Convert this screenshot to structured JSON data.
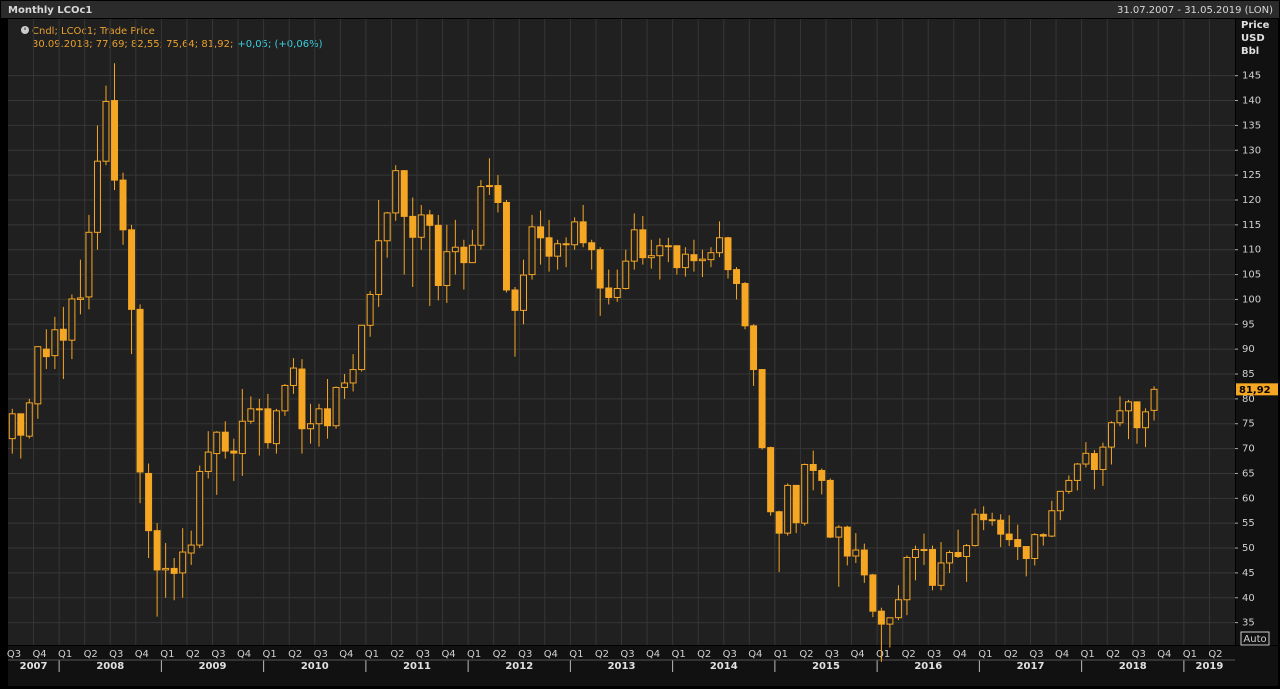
{
  "chart_data": {
    "type": "candlestick",
    "title": "Monthly LCOc1",
    "date_range": "31.07.2007 - 31.05.2019 (LON)",
    "axis_label": [
      "Price",
      "USD",
      "Bbl"
    ],
    "legend": "Cndl; LCOc1; Trade Price",
    "info": "30.09.2018; 77,69; 82,55; 75,64; 81,92;",
    "change": "+0,05; (+0,06%)",
    "button": "Auto",
    "color": "#f5a623",
    "ylim": [
      30.5,
      156.4
    ],
    "yticks": [
      35,
      40,
      45,
      50,
      55,
      60,
      65,
      70,
      75,
      80,
      85,
      90,
      95,
      100,
      105,
      110,
      115,
      120,
      125,
      130,
      135,
      140,
      145
    ],
    "grid": true,
    "last_price": {
      "value": 81.92,
      "label": "81,92"
    },
    "quarter_labels": [
      "Q3",
      "Q4",
      "Q1",
      "Q2",
      "Q3",
      "Q4",
      "Q1",
      "Q2",
      "Q3",
      "Q4",
      "Q1",
      "Q2",
      "Q3",
      "Q4",
      "Q1",
      "Q2",
      "Q3",
      "Q4",
      "Q1",
      "Q2",
      "Q3",
      "Q4",
      "Q1",
      "Q2",
      "Q3",
      "Q4",
      "Q1",
      "Q2",
      "Q3",
      "Q4",
      "Q1",
      "Q2",
      "Q3",
      "Q4",
      "Q1",
      "Q2",
      "Q3",
      "Q4",
      "Q1",
      "Q2",
      "Q3",
      "Q4",
      "Q1",
      "Q2",
      "Q3",
      "Q4",
      "Q1",
      "Q2"
    ],
    "year_labels": [
      "2007",
      "2008",
      "2009",
      "2010",
      "2011",
      "2012",
      "2013",
      "2014",
      "2015",
      "2016",
      "2017",
      "2018",
      "2019"
    ],
    "open": [
      72,
      77,
      72.5,
      79,
      90,
      88.7,
      94,
      91.8,
      100,
      100.5,
      113.5,
      127.8,
      140,
      124,
      114,
      98,
      65,
      53.5,
      45.6,
      45.9,
      45,
      49,
      50.6,
      65.4,
      69,
      73.3,
      69.5,
      69,
      75.5,
      78,
      78,
      71,
      77.6,
      82.7,
      86,
      74,
      75,
      78,
      74.6,
      82.3,
      83.2,
      85.9,
      94.8,
      101,
      111.8,
      117.4,
      125.9,
      116.7,
      112.5,
      117,
      114.9,
      102.8,
      109.6,
      110.5,
      107.4,
      110.9,
      122.7,
      122.9,
      119.5,
      101.9,
      97.8,
      105,
      114.6,
      112.4,
      108.7,
      111.2,
      111,
      115.6,
      111.4,
      110,
      102.3,
      100.4,
      102.2,
      107.7,
      114,
      108.4,
      108.8,
      110.8,
      110.8,
      106.4,
      109,
      107.8,
      108,
      109.4,
      112.4,
      106,
      103.2,
      94.7,
      85.9,
      70.2,
      57.3,
      53,
      62.6,
      55,
      66.8,
      65.6,
      63.6,
      52.2,
      54.2,
      48.4,
      49.6,
      44.6,
      37.3,
      34.7,
      36,
      39.6,
      48.1,
      49.7,
      49.7,
      42.5,
      47,
      49.1,
      48.3,
      50.5,
      56.8,
      55.7,
      55.6,
      52.8,
      51.7,
      50.3,
      47.9,
      52.7,
      52.4,
      57.5,
      61.4,
      63.6,
      66.9,
      69,
      65.8,
      70.3,
      75.2,
      77.6,
      79.4,
      74.2,
      77.69
    ],
    "high": [
      78,
      77,
      80,
      90.5,
      94,
      96.5,
      98.5,
      101,
      108,
      117,
      135,
      143,
      147.5,
      125.5,
      115,
      99,
      67,
      55,
      51,
      48,
      54,
      53.5,
      66.6,
      73.5,
      73.5,
      75.5,
      72,
      82,
      80.5,
      80,
      81,
      78,
      83,
      88.2,
      88,
      79,
      79,
      84,
      82.5,
      85,
      89,
      94.8,
      101.7,
      120,
      117.6,
      127,
      126,
      120.5,
      119,
      118,
      117,
      115,
      116,
      112,
      114,
      124,
      128.4,
      125,
      120,
      102.5,
      108,
      117,
      117.9,
      116,
      112,
      112.5,
      116.5,
      119,
      112,
      110.5,
      106,
      106,
      110,
      117.3,
      116.8,
      112,
      112.3,
      112.4,
      110.8,
      110.5,
      112,
      110,
      110.5,
      115.7,
      112.6,
      106.5,
      103.5,
      95,
      86,
      70.4,
      57.5,
      63,
      62.6,
      67,
      69.6,
      66,
      64,
      54.6,
      54.5,
      53,
      50.9,
      44.8,
      38,
      36,
      42.5,
      48.5,
      50.5,
      52.9,
      50.5,
      51.2,
      49.5,
      53.7,
      50.8,
      57.9,
      58.4,
      57.1,
      56.8,
      56.6,
      54.7,
      50.3,
      53,
      53,
      59.5,
      61.4,
      64.6,
      67.1,
      71.3,
      69.7,
      71.2,
      75.5,
      80.5,
      79.8,
      79.5,
      78.1,
      82.55
    ],
    "low": [
      69,
      68,
      72,
      76,
      86,
      86,
      84,
      88,
      97,
      98,
      110,
      127,
      122,
      111,
      89,
      59,
      48,
      36.2,
      40,
      39.5,
      40,
      46.6,
      50,
      64,
      60.7,
      68,
      63.5,
      64.5,
      75,
      68.6,
      70,
      69,
      76.6,
      81,
      69,
      71,
      70.4,
      72,
      74,
      80,
      81.5,
      85.5,
      92.5,
      98.5,
      108.4,
      115.8,
      105,
      102.5,
      110,
      98.7,
      99.8,
      99.3,
      105,
      102,
      108,
      110,
      121,
      117.5,
      101.4,
      88.5,
      95,
      104,
      107,
      105.6,
      106,
      106.5,
      110,
      110.5,
      106,
      96.7,
      99,
      99.5,
      102,
      106,
      107,
      106.2,
      104,
      107.5,
      105,
      104.6,
      105.6,
      104.5,
      106.5,
      108.5,
      104.2,
      100,
      94,
      82.6,
      69.8,
      56.5,
      45.2,
      52.5,
      53,
      54.5,
      61.6,
      60.8,
      52,
      42.2,
      46.5,
      47,
      43,
      36.1,
      27.1,
      30,
      35.5,
      36.5,
      43.5,
      46.6,
      41.5,
      41.5,
      45,
      48,
      43.2,
      50.3,
      53.6,
      54.5,
      50.2,
      50.4,
      47.6,
      44.3,
      46.5,
      50.5,
      52.2,
      55.6,
      60.9,
      61.6,
      66.2,
      61.8,
      62.5,
      66.8,
      74.5,
      71.9,
      71,
      70.3,
      75.64
    ],
    "close": [
      77,
      72.7,
      79.2,
      90.5,
      88.5,
      93.9,
      91.8,
      100.1,
      100.3,
      113.5,
      127.8,
      139.8,
      124,
      114,
      98,
      65.3,
      53.5,
      45.6,
      45.9,
      44.9,
      49.2,
      50.6,
      65.4,
      69.3,
      73.3,
      69.5,
      69.1,
      75.5,
      78,
      77.9,
      71.2,
      77.6,
      82.7,
      86.2,
      74,
      75,
      78,
      74.6,
      82.3,
      83.2,
      85.9,
      94.8,
      101,
      111.8,
      117.4,
      125.9,
      116.7,
      112.5,
      117,
      114.9,
      102.8,
      109.6,
      110.5,
      107.4,
      110.9,
      122.7,
      122.9,
      119.5,
      101.9,
      97.8,
      104.9,
      114.6,
      112.4,
      108.7,
      111.2,
      111.1,
      115.6,
      111.4,
      110,
      102.3,
      100.4,
      102.2,
      107.7,
      114,
      108.4,
      108.8,
      110.8,
      110.8,
      106.4,
      109.1,
      107.8,
      108.1,
      109.4,
      112.4,
      106,
      103.2,
      94.7,
      85.9,
      70.2,
      57.3,
      52.99,
      62.6,
      55.1,
      66.8,
      65.6,
      63.6,
      52.2,
      54.2,
      48.4,
      49.6,
      44.6,
      37.3,
      34.7,
      35.97,
      39.6,
      48.1,
      49.7,
      49.7,
      42.5,
      47,
      49.1,
      48.3,
      50.5,
      56.8,
      55.7,
      55.6,
      52.8,
      51.7,
      50.3,
      47.9,
      52.7,
      52.4,
      57.5,
      61.4,
      63.6,
      66.9,
      69.05,
      65.8,
      70.3,
      75.2,
      77.6,
      79.4,
      74.2,
      77.4,
      81.92
    ]
  }
}
